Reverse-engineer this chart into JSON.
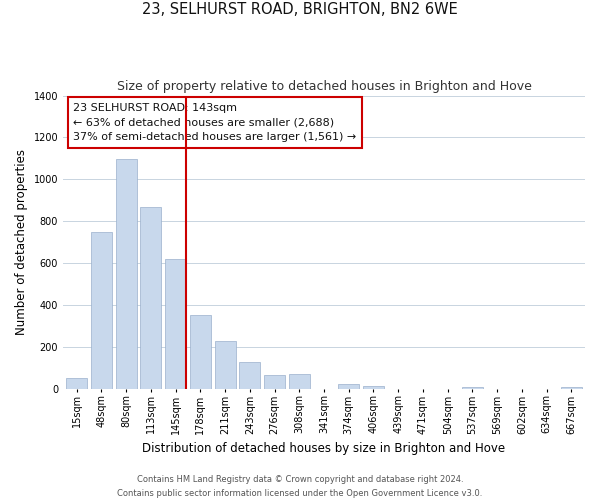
{
  "title": "23, SELHURST ROAD, BRIGHTON, BN2 6WE",
  "subtitle": "Size of property relative to detached houses in Brighton and Hove",
  "xlabel": "Distribution of detached houses by size in Brighton and Hove",
  "ylabel": "Number of detached properties",
  "categories": [
    "15sqm",
    "48sqm",
    "80sqm",
    "113sqm",
    "145sqm",
    "178sqm",
    "211sqm",
    "243sqm",
    "276sqm",
    "308sqm",
    "341sqm",
    "374sqm",
    "406sqm",
    "439sqm",
    "471sqm",
    "504sqm",
    "537sqm",
    "569sqm",
    "602sqm",
    "634sqm",
    "667sqm"
  ],
  "values": [
    52,
    750,
    1095,
    870,
    620,
    350,
    228,
    130,
    65,
    70,
    0,
    22,
    15,
    0,
    0,
    0,
    10,
    0,
    0,
    0,
    10
  ],
  "bar_color": "#c8d8ec",
  "bar_edge_color": "#9ab0cc",
  "vline_index": 4,
  "vline_color": "#cc0000",
  "annotation_line1": "23 SELHURST ROAD: 143sqm",
  "annotation_line2": "← 63% of detached houses are smaller (2,688)",
  "annotation_line3": "37% of semi-detached houses are larger (1,561) →",
  "annotation_box_color": "#ffffff",
  "annotation_box_edge": "#cc0000",
  "ylim": [
    0,
    1400
  ],
  "yticks": [
    0,
    200,
    400,
    600,
    800,
    1000,
    1200,
    1400
  ],
  "footer_line1": "Contains HM Land Registry data © Crown copyright and database right 2024.",
  "footer_line2": "Contains public sector information licensed under the Open Government Licence v3.0.",
  "background_color": "#ffffff",
  "grid_color": "#c8d4e0",
  "title_fontsize": 10.5,
  "subtitle_fontsize": 9,
  "axis_label_fontsize": 8.5,
  "tick_fontsize": 7,
  "annotation_fontsize": 8,
  "footer_fontsize": 6
}
